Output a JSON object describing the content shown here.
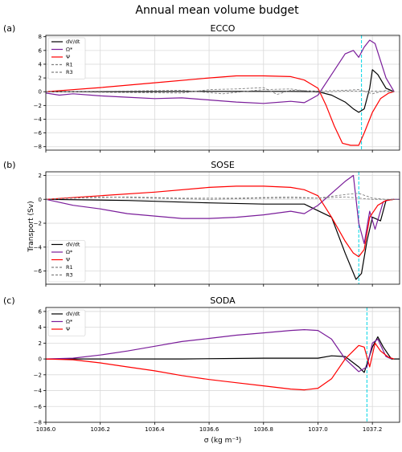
{
  "figure": {
    "title": "Annual mean volume budget",
    "ylabel": "Transport (Sv)",
    "xlabel": "σ (kg m⁻³)"
  },
  "colors": {
    "dVdt": "#000000",
    "omega": "#7a1d9a",
    "psi": "#ff0000",
    "residual": "#808080",
    "marker": "#00d5e6",
    "grid": "#d9d9d9"
  },
  "chart_data": [
    {
      "panel_label": "(a)",
      "title": "ECCO",
      "type": "line",
      "xlim": [
        1036.0,
        1037.3
      ],
      "ylim": [
        -8.5,
        8.2
      ],
      "x_ticks": [
        1036.0,
        1036.2,
        1036.4,
        1036.6,
        1036.8,
        1037.0,
        1037.2
      ],
      "y_ticks": [
        -8,
        -6,
        -4,
        -2,
        0,
        2,
        4,
        6,
        8
      ],
      "y_tick_labels": [
        "−8",
        "−6",
        "−4",
        "−2",
        "0",
        "2",
        "4",
        "6",
        "8"
      ],
      "grid": true,
      "legend_position": "top-left",
      "vline": 1037.16,
      "series": [
        {
          "key": "dVdt",
          "name": "dV/dt",
          "style": "solid",
          "x": [
            1036.0,
            1036.3,
            1036.6,
            1036.9,
            1037.0,
            1037.05,
            1037.1,
            1037.13,
            1037.15,
            1037.17,
            1037.19,
            1037.2,
            1037.22,
            1037.25,
            1037.28
          ],
          "y": [
            0,
            0,
            0.05,
            0.05,
            0,
            -0.5,
            -1.5,
            -2.5,
            -3.0,
            -2.5,
            0.5,
            3.2,
            2.5,
            0.5,
            0
          ]
        },
        {
          "key": "omega",
          "name": "Ω*",
          "style": "solid",
          "x": [
            1036.0,
            1036.05,
            1036.1,
            1036.2,
            1036.3,
            1036.4,
            1036.5,
            1036.6,
            1036.7,
            1036.8,
            1036.9,
            1036.95,
            1037.0,
            1037.05,
            1037.1,
            1037.13,
            1037.15,
            1037.17,
            1037.19,
            1037.21,
            1037.25,
            1037.28
          ],
          "y": [
            -0.2,
            -0.5,
            -0.3,
            -0.6,
            -0.8,
            -1.0,
            -0.9,
            -1.2,
            -1.5,
            -1.7,
            -1.4,
            -1.6,
            -0.5,
            2.5,
            5.5,
            6.0,
            5.0,
            6.5,
            7.5,
            7.0,
            2.0,
            0
          ]
        },
        {
          "key": "psi",
          "name": "Ψ",
          "style": "solid",
          "x": [
            1036.0,
            1036.2,
            1036.4,
            1036.6,
            1036.7,
            1036.8,
            1036.9,
            1036.95,
            1037.0,
            1037.03,
            1037.06,
            1037.09,
            1037.12,
            1037.15,
            1037.17,
            1037.2,
            1037.23,
            1037.26,
            1037.28
          ],
          "y": [
            0,
            0.6,
            1.3,
            2.0,
            2.3,
            2.3,
            2.2,
            1.7,
            0.5,
            -2.0,
            -5.0,
            -7.5,
            -7.8,
            -7.8,
            -6.0,
            -3.0,
            -1.0,
            -0.2,
            0
          ]
        },
        {
          "key": "residual",
          "name": "R1",
          "style": "dashed",
          "x": [
            1036.0,
            1036.5,
            1036.6,
            1036.7,
            1036.8,
            1036.85,
            1036.9,
            1037.0,
            1037.1,
            1037.15,
            1037.2,
            1037.25,
            1037.28
          ],
          "y": [
            0,
            -0.2,
            0.3,
            0.4,
            0.6,
            -0.4,
            0.2,
            0.1,
            0.2,
            0.3,
            -0.3,
            0.2,
            0
          ]
        },
        {
          "key": "residual",
          "name": "R3",
          "style": "dashed",
          "x": [
            1036.0,
            1036.3,
            1036.5,
            1036.65,
            1036.8,
            1036.9,
            1037.0,
            1037.1,
            1037.2,
            1037.28
          ],
          "y": [
            0,
            0.1,
            0.2,
            -0.3,
            0.3,
            0.4,
            -0.1,
            0.1,
            0.1,
            0
          ]
        }
      ]
    },
    {
      "panel_label": "(b)",
      "title": "SOSE",
      "type": "line",
      "xlim": [
        1036.0,
        1037.3
      ],
      "ylim": [
        -7.1,
        2.3
      ],
      "x_ticks": [
        1036.0,
        1036.2,
        1036.4,
        1036.6,
        1036.8,
        1037.0,
        1037.2
      ],
      "y_ticks": [
        -6,
        -4,
        -2,
        0,
        2
      ],
      "y_tick_labels": [
        "−6",
        "−4",
        "−2",
        "0",
        "2"
      ],
      "grid": true,
      "legend_position": "bottom-left",
      "vline": 1037.15,
      "series": [
        {
          "key": "dVdt",
          "name": "dV/dt",
          "style": "solid",
          "x": [
            1036.0,
            1036.3,
            1036.6,
            1036.8,
            1036.95,
            1037.05,
            1037.1,
            1037.14,
            1037.16,
            1037.18,
            1037.2,
            1037.23,
            1037.25,
            1037.28
          ],
          "y": [
            0,
            -0.1,
            -0.3,
            -0.4,
            -0.4,
            -1.5,
            -4.5,
            -6.7,
            -6.2,
            -3.5,
            -1.5,
            -1.8,
            -0.1,
            0
          ]
        },
        {
          "key": "omega",
          "name": "Ω*",
          "style": "solid",
          "x": [
            1036.0,
            1036.1,
            1036.2,
            1036.3,
            1036.4,
            1036.5,
            1036.6,
            1036.7,
            1036.8,
            1036.9,
            1036.95,
            1037.0,
            1037.05,
            1037.1,
            1037.13,
            1037.15,
            1037.17,
            1037.19,
            1037.21,
            1037.24,
            1037.27,
            1037.3
          ],
          "y": [
            0,
            -0.5,
            -0.8,
            -1.2,
            -1.4,
            -1.6,
            -1.6,
            -1.5,
            -1.3,
            -1.0,
            -1.2,
            -0.5,
            0.5,
            1.5,
            2.0,
            -2.0,
            -3.7,
            -1.0,
            -2.5,
            -0.2,
            0,
            0
          ]
        },
        {
          "key": "psi",
          "name": "Ψ",
          "style": "solid",
          "x": [
            1036.0,
            1036.2,
            1036.4,
            1036.6,
            1036.7,
            1036.8,
            1036.9,
            1036.95,
            1037.0,
            1037.05,
            1037.1,
            1037.13,
            1037.15,
            1037.17,
            1037.19,
            1037.22,
            1037.25,
            1037.28
          ],
          "y": [
            0,
            0.3,
            0.6,
            1.0,
            1.1,
            1.1,
            1.0,
            0.8,
            0.3,
            -1.5,
            -3.5,
            -4.5,
            -4.8,
            -4.2,
            -1.5,
            -0.5,
            -0.1,
            0
          ]
        },
        {
          "key": "residual",
          "name": "R1",
          "style": "dashed",
          "x": [
            1036.0,
            1036.2,
            1036.4,
            1036.6,
            1036.8,
            1037.0,
            1037.1,
            1037.15,
            1037.2,
            1037.25,
            1037.3
          ],
          "y": [
            0,
            0.2,
            0.1,
            0,
            0.1,
            0.1,
            0.4,
            0.5,
            0.1,
            0,
            0
          ]
        },
        {
          "key": "residual",
          "name": "R3",
          "style": "dashed",
          "x": [
            1036.0,
            1036.1,
            1036.3,
            1036.5,
            1036.7,
            1036.9,
            1037.0,
            1037.1,
            1037.2,
            1037.3
          ],
          "y": [
            0,
            0.1,
            0.2,
            0.1,
            0.1,
            0.2,
            0.1,
            0.2,
            0,
            0
          ]
        }
      ]
    },
    {
      "panel_label": "(c)",
      "title": "SODA",
      "type": "line",
      "xlim": [
        1036.0,
        1037.3
      ],
      "ylim": [
        -8.0,
        6.5
      ],
      "x_ticks": [
        1036.0,
        1036.2,
        1036.4,
        1036.6,
        1036.8,
        1037.0,
        1037.2
      ],
      "x_tick_labels": [
        "1036.0",
        "1036.2",
        "1036.4",
        "1036.6",
        "1036.8",
        "1037.0",
        "1037.2"
      ],
      "y_ticks": [
        -8,
        -6,
        -4,
        -2,
        0,
        2,
        4,
        6
      ],
      "y_tick_labels": [
        "−8",
        "−6",
        "−4",
        "−2",
        "0",
        "2",
        "4",
        "6"
      ],
      "grid": true,
      "legend_position": "top-left",
      "vline": 1037.18,
      "series": [
        {
          "key": "dVdt",
          "name": "dV/dt",
          "style": "solid",
          "x": [
            1036.0,
            1036.5,
            1036.8,
            1037.0,
            1037.05,
            1037.1,
            1037.15,
            1037.17,
            1037.2,
            1037.22,
            1037.24,
            1037.27,
            1037.3
          ],
          "y": [
            0,
            0,
            0.1,
            0.1,
            0.4,
            0.3,
            -1.0,
            -1.7,
            1.5,
            2.8,
            1.5,
            0,
            0
          ]
        },
        {
          "key": "omega",
          "name": "Ω*",
          "style": "solid",
          "x": [
            1036.0,
            1036.1,
            1036.2,
            1036.3,
            1036.4,
            1036.5,
            1036.6,
            1036.7,
            1036.8,
            1036.9,
            1036.95,
            1037.0,
            1037.05,
            1037.1,
            1037.15,
            1037.18,
            1037.2,
            1037.22,
            1037.25,
            1037.27
          ],
          "y": [
            0,
            0.1,
            0.5,
            1.0,
            1.6,
            2.2,
            2.6,
            3.0,
            3.3,
            3.6,
            3.7,
            3.6,
            2.5,
            0,
            -1.6,
            -1.0,
            2.0,
            2.5,
            0.3,
            0
          ]
        },
        {
          "key": "psi",
          "name": "Ψ",
          "style": "solid",
          "x": [
            1036.0,
            1036.1,
            1036.2,
            1036.3,
            1036.4,
            1036.5,
            1036.6,
            1036.7,
            1036.8,
            1036.9,
            1036.95,
            1037.0,
            1037.05,
            1037.1,
            1037.15,
            1037.17,
            1037.19,
            1037.21,
            1037.23,
            1037.26,
            1037.28
          ],
          "y": [
            0,
            -0.1,
            -0.5,
            -1.0,
            -1.5,
            -2.1,
            -2.6,
            -3.0,
            -3.4,
            -3.8,
            -3.9,
            -3.7,
            -2.5,
            0,
            1.7,
            1.5,
            -1.0,
            2.0,
            1.0,
            0.2,
            0
          ]
        }
      ]
    }
  ]
}
